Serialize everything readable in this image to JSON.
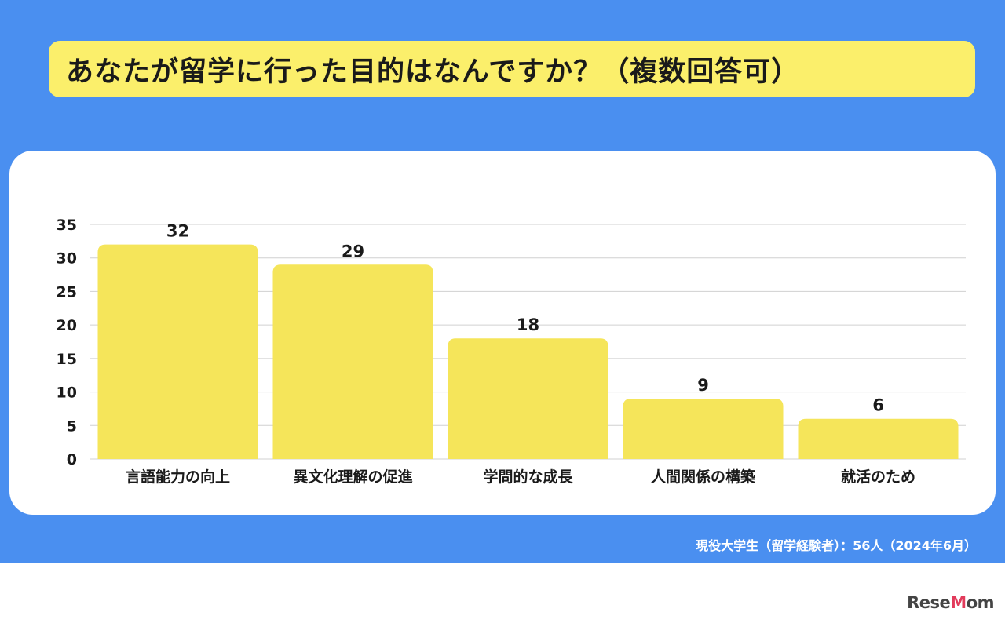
{
  "title": "あなたが留学に行った目的はなんですか？（複数回答可）",
  "source_note": "現役大学生（留学経験者）：56人（2024年6月）",
  "logo": {
    "text": "ReseMom"
  },
  "colors": {
    "background_blue": "#4a8ff0",
    "title_box": "#fbef6b",
    "bar": "#f5e55a",
    "gridline": "#d0d0d0"
  },
  "chart_data": {
    "type": "bar",
    "categories": [
      "言語能力の向上",
      "異文化理解の促進",
      "学問的な成長",
      "人間関係の構築",
      "就活のため"
    ],
    "values": [
      32,
      29,
      18,
      9,
      6
    ],
    "title": "あなたが留学に行った目的はなんですか？（複数回答可）",
    "xlabel": "",
    "ylabel": "",
    "ylim": [
      0,
      35
    ],
    "yticks": [
      0,
      5,
      10,
      15,
      20,
      25,
      30,
      35
    ],
    "grid": true,
    "data_labels": true,
    "legend": "none"
  }
}
